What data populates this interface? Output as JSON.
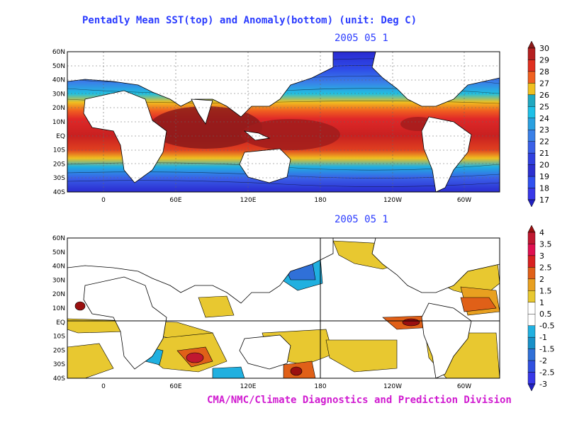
{
  "title": "Pentadly Mean SST(top) and Anomaly(bottom) (unit: Deg C)",
  "footer": "CMA/NMC/Climate Diagnostics and Prediction Division",
  "colors": {
    "title": "#2b3cff",
    "footer": "#d01ad0",
    "land": "#ffffff",
    "coast": "#000000",
    "ocean_warm": "#b01818",
    "ocean_cold": "#2036c8"
  },
  "top_panel": {
    "date_label": "2005  05  1",
    "lat_labels": [
      "60N",
      "50N",
      "40N",
      "30N",
      "20N",
      "10N",
      "EQ",
      "10S",
      "20S",
      "30S",
      "40S"
    ],
    "lon_labels": [
      "0",
      "60E",
      "120E",
      "180",
      "120W",
      "60W"
    ],
    "colorbar": {
      "labels": [
        "30",
        "29",
        "28",
        "27",
        "26",
        "25",
        "24",
        "23",
        "22",
        "21",
        "20",
        "19",
        "18",
        "17"
      ],
      "colors": [
        "#8b1a1a",
        "#b52020",
        "#e03020",
        "#f06020",
        "#f0c020",
        "#20a8c0",
        "#1ec0e8",
        "#2aa0e0",
        "#3a80e8",
        "#3a60e8",
        "#3040e0",
        "#2c30d0",
        "#3050f0",
        "#3838e8",
        "#2020c0"
      ]
    }
  },
  "bottom_panel": {
    "date_label": "2005  05  1",
    "lat_labels": [
      "60N",
      "50N",
      "40N",
      "30N",
      "20N",
      "10N",
      "EQ",
      "10S",
      "20S",
      "30S",
      "40S"
    ],
    "lon_labels": [
      "0",
      "60E",
      "120E",
      "180",
      "120W",
      "60W"
    ],
    "colorbar": {
      "labels": [
        "4",
        "3.5",
        "3",
        "2.5",
        "2",
        "1.5",
        "1",
        "0.5",
        "-0.5",
        "-1",
        "-1.5",
        "-2",
        "-2.5",
        "-3"
      ],
      "colors": [
        "#9a1010",
        "#c01830",
        "#e01050",
        "#d82020",
        "#e06018",
        "#e8a020",
        "#e8c830",
        "#ffffff",
        "#ffffff",
        "#20b0e0",
        "#1890c8",
        "#3070d8",
        "#3050e0",
        "#3838e8",
        "#2020c0"
      ]
    }
  }
}
